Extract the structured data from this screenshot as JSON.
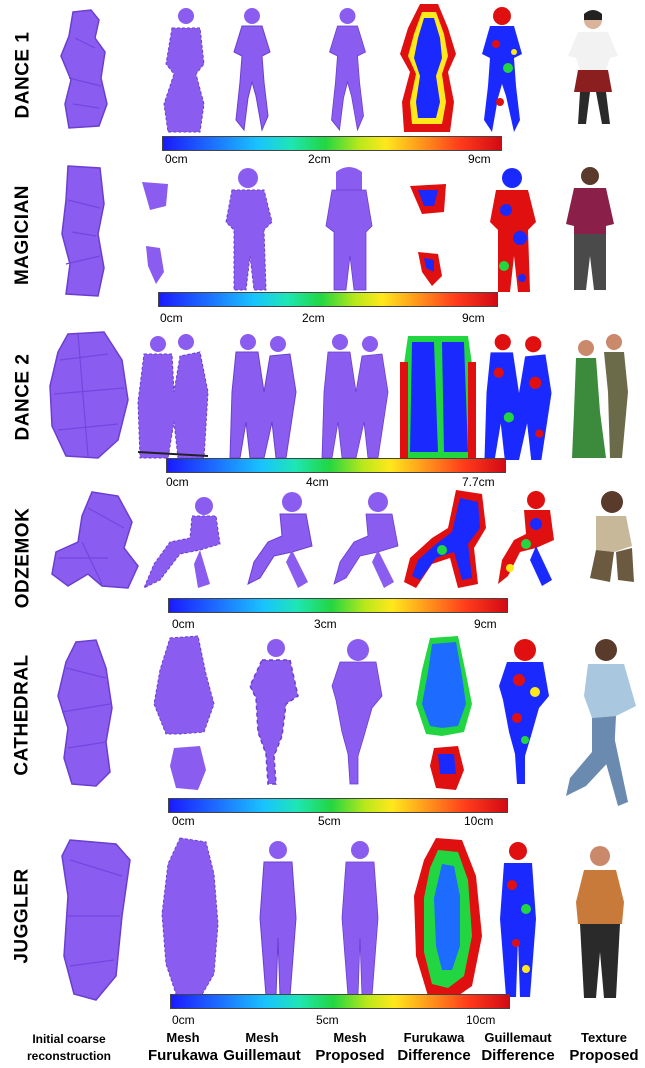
{
  "rows": [
    {
      "label": "DANCE 1",
      "scale": {
        "min": "0cm",
        "mid": "2cm",
        "max": "9cm"
      }
    },
    {
      "label": "MAGICIAN",
      "scale": {
        "min": "0cm",
        "mid": "2cm",
        "max": "9cm"
      }
    },
    {
      "label": "DANCE 2",
      "scale": {
        "min": "0cm",
        "mid": "4cm",
        "max": "7.7cm"
      }
    },
    {
      "label": "ODZEMOK",
      "scale": {
        "min": "0cm",
        "mid": "3cm",
        "max": "9cm"
      }
    },
    {
      "label": "CATHEDRAL",
      "scale": {
        "min": "0cm",
        "mid": "5cm",
        "max": "10cm"
      }
    },
    {
      "label": "JUGGLER",
      "scale": {
        "min": "0cm",
        "mid": "5cm",
        "max": "10cm"
      }
    }
  ],
  "columns": [
    {
      "top": "Initial coarse",
      "bottom": "reconstruction"
    },
    {
      "top": "Mesh",
      "bottom": "Furukawa"
    },
    {
      "top": "Mesh",
      "bottom": "Guillemaut"
    },
    {
      "top": "Mesh",
      "bottom": "Proposed"
    },
    {
      "top": "Furukawa",
      "bottom": "Difference"
    },
    {
      "top": "Guillemaut",
      "bottom": "Difference"
    },
    {
      "top": "Texture",
      "bottom": "Proposed"
    }
  ],
  "colors": {
    "mesh": "#8b5cf0",
    "mesh_dark": "#6a3fd0",
    "heat_low": "#1a2aff",
    "heat_mid": "#22d642",
    "heat_high": "#e01010"
  }
}
